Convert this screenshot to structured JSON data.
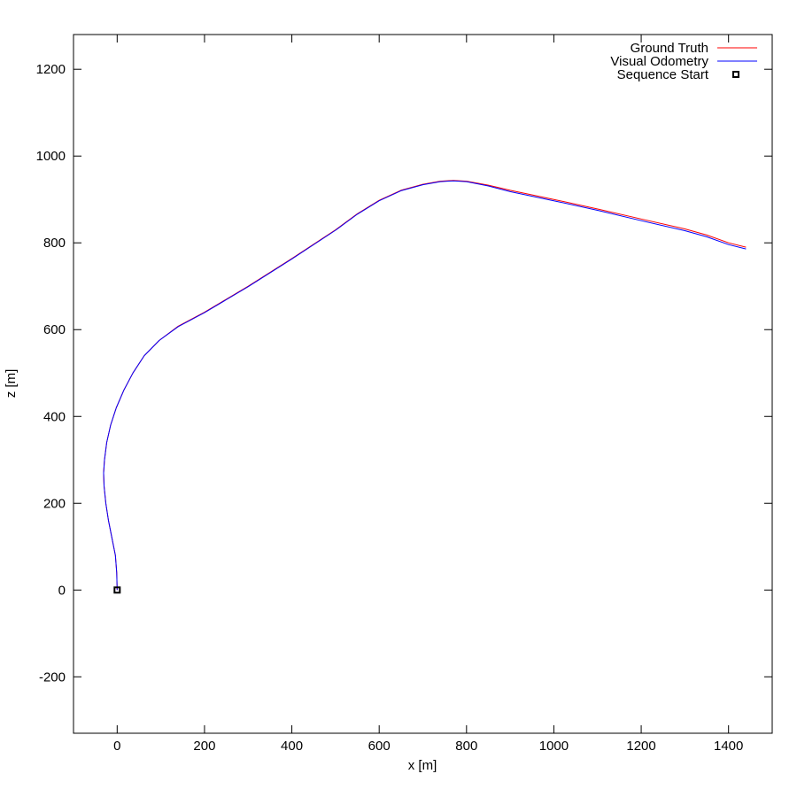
{
  "chart_data": {
    "type": "line",
    "xlabel": "x [m]",
    "ylabel": "z [m]",
    "xlim": [
      -100,
      1500
    ],
    "ylim": [
      -330,
      1280
    ],
    "x_ticks": [
      0,
      200,
      400,
      600,
      800,
      1000,
      1200,
      1400
    ],
    "y_ticks": [
      -200,
      0,
      200,
      400,
      600,
      800,
      1000,
      1200
    ],
    "grid": false,
    "legend_position": "top-right",
    "series": [
      {
        "name": "Ground Truth",
        "color": "#ff0000",
        "points": [
          [
            0,
            0
          ],
          [
            -1,
            40
          ],
          [
            -4,
            80
          ],
          [
            -12,
            120
          ],
          [
            -20,
            160
          ],
          [
            -26,
            200
          ],
          [
            -30,
            240
          ],
          [
            -31,
            270
          ],
          [
            -29,
            300
          ],
          [
            -24,
            340
          ],
          [
            -15,
            380
          ],
          [
            -2,
            420
          ],
          [
            15,
            460
          ],
          [
            36,
            500
          ],
          [
            62,
            540
          ],
          [
            96,
            575
          ],
          [
            140,
            608
          ],
          [
            200,
            640
          ],
          [
            300,
            700
          ],
          [
            400,
            764
          ],
          [
            500,
            830
          ],
          [
            550,
            867
          ],
          [
            600,
            898
          ],
          [
            650,
            921
          ],
          [
            700,
            935
          ],
          [
            740,
            942
          ],
          [
            770,
            944
          ],
          [
            800,
            942
          ],
          [
            850,
            933
          ],
          [
            900,
            921
          ],
          [
            1000,
            900
          ],
          [
            1100,
            878
          ],
          [
            1200,
            855
          ],
          [
            1300,
            832
          ],
          [
            1350,
            818
          ],
          [
            1400,
            800
          ],
          [
            1440,
            790
          ]
        ]
      },
      {
        "name": "Visual Odometry",
        "color": "#0000ff",
        "points": [
          [
            0,
            0
          ],
          [
            -1,
            40
          ],
          [
            -4,
            80
          ],
          [
            -12,
            120
          ],
          [
            -20,
            160
          ],
          [
            -26,
            200
          ],
          [
            -30,
            240
          ],
          [
            -31,
            270
          ],
          [
            -29,
            300
          ],
          [
            -24,
            340
          ],
          [
            -15,
            380
          ],
          [
            -2,
            420
          ],
          [
            15,
            460
          ],
          [
            36,
            500
          ],
          [
            62,
            540
          ],
          [
            96,
            575
          ],
          [
            140,
            607
          ],
          [
            200,
            639
          ],
          [
            300,
            699
          ],
          [
            400,
            763
          ],
          [
            500,
            829
          ],
          [
            550,
            866
          ],
          [
            600,
            897
          ],
          [
            650,
            920
          ],
          [
            700,
            934
          ],
          [
            740,
            941
          ],
          [
            770,
            943
          ],
          [
            800,
            941
          ],
          [
            850,
            931
          ],
          [
            900,
            918
          ],
          [
            1000,
            897
          ],
          [
            1100,
            875
          ],
          [
            1200,
            851
          ],
          [
            1300,
            828
          ],
          [
            1350,
            814
          ],
          [
            1400,
            796
          ],
          [
            1440,
            786
          ]
        ]
      },
      {
        "name": "Sequence Start",
        "color": "#000000",
        "marker": "square",
        "points": [
          [
            0,
            0
          ]
        ]
      }
    ]
  }
}
